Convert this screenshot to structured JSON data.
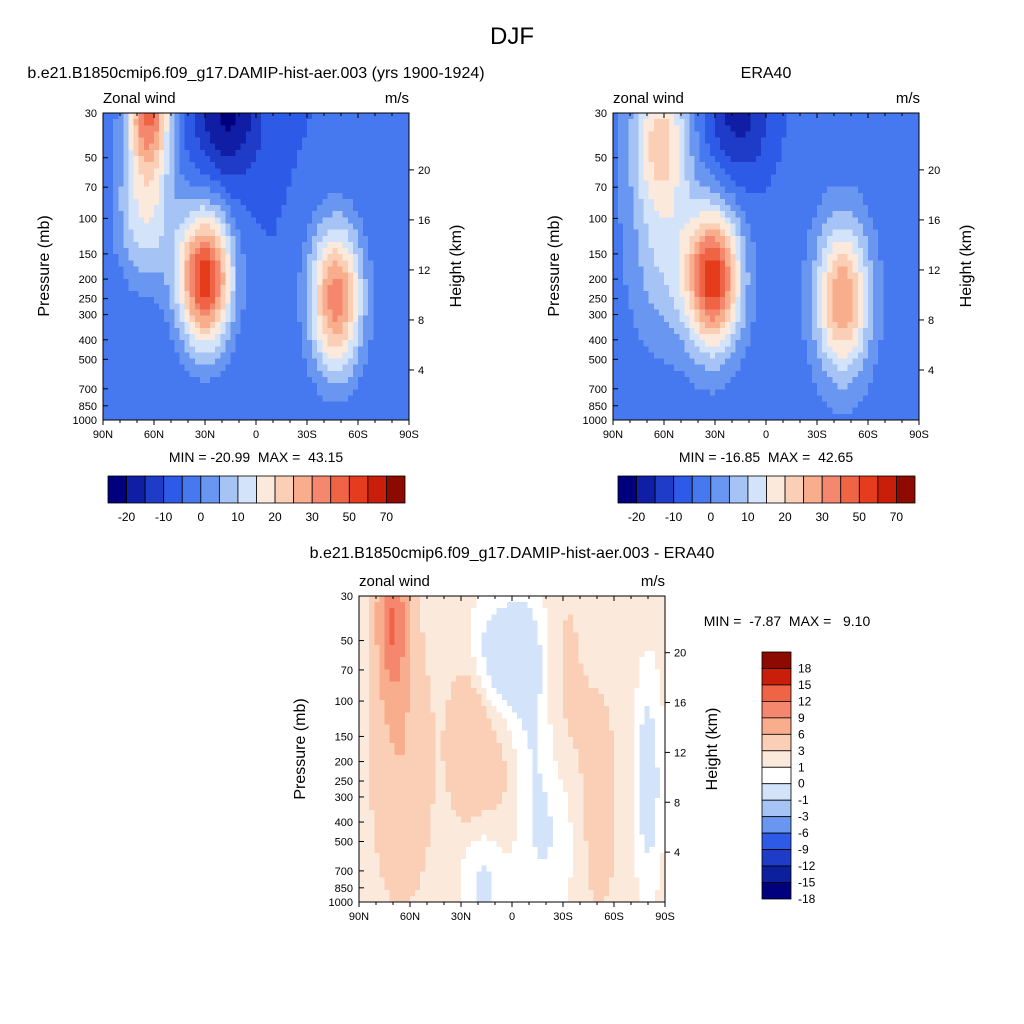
{
  "figure": {
    "title": "DJF"
  },
  "colors": {
    "abs": [
      "#00007f",
      "#0f1ea5",
      "#1e3cc8",
      "#2d5ae6",
      "#4678f0",
      "#6996f0",
      "#a5c3f5",
      "#d2e3fa",
      "#fbe9dc",
      "#fbcfb5",
      "#f8ad8c",
      "#f5876e",
      "#f06446",
      "#e63c1e",
      "#c81e0a",
      "#8c0a00"
    ],
    "diff": [
      "#00007f",
      "#0c1f9c",
      "#1e3cc8",
      "#2d5ae6",
      "#6996f0",
      "#a5c3f5",
      "#d2e3fa",
      "#ffffff",
      "#fbe9dc",
      "#fbcfb5",
      "#f8ad8c",
      "#f5876e",
      "#f06446",
      "#c81e0a",
      "#8c0a00"
    ]
  },
  "chart_data": [
    {
      "type": "heatmap",
      "title": "b.e21.B1850cmip6.f09_g17.DAMIP-hist-aer.003 (yrs 1900-1924)",
      "left_label": "Zonal wind",
      "right_label": "m/s",
      "ylabel": "Pressure (mb)",
      "y2label": "Height (km)",
      "x_ticks": [
        "90N",
        "60N",
        "30N",
        "0",
        "30S",
        "60S",
        "90S"
      ],
      "xlim": [
        90,
        -90
      ],
      "y_ticks": [
        "30",
        "50",
        "70",
        "100",
        "150",
        "200",
        "250",
        "300",
        "400",
        "500",
        "700",
        "850",
        "1000"
      ],
      "ylim": [
        1000,
        30
      ],
      "log_y": true,
      "y2_ticks": [
        "4",
        "8",
        "12",
        "16",
        "20"
      ],
      "stats": "MIN = -20.99  MAX =  43.15",
      "colorbar_labels": [
        "-20",
        "-10",
        "0",
        "10",
        "20",
        "30",
        "50",
        "70"
      ],
      "features": [
        {
          "desc": "subtropical jet NH",
          "lat": 30,
          "p": 200,
          "max": 43.15
        },
        {
          "desc": "subtropical jet SH",
          "lat": -47,
          "p": 250,
          "max": 32
        },
        {
          "desc": "polar night jet",
          "lat": 63,
          "p": 30,
          "max": 32
        },
        {
          "desc": "easterlies",
          "lat": 17,
          "p": 30,
          "min": -20.99
        }
      ]
    },
    {
      "type": "heatmap",
      "title": "ERA40",
      "left_label": "zonal wind",
      "right_label": "m/s",
      "ylabel": "Pressure (mb)",
      "y2label": "Height (km)",
      "x_ticks": [
        "90N",
        "60N",
        "30N",
        "0",
        "30S",
        "60S",
        "90S"
      ],
      "xlim": [
        90,
        -90
      ],
      "y_ticks": [
        "30",
        "50",
        "70",
        "100",
        "150",
        "200",
        "250",
        "300",
        "400",
        "500",
        "700",
        "850",
        "1000"
      ],
      "ylim": [
        1000,
        30
      ],
      "log_y": true,
      "y2_ticks": [
        "4",
        "8",
        "12",
        "16",
        "20"
      ],
      "stats": "MIN = -16.85  MAX =  42.65",
      "colorbar_labels": [
        "-20",
        "-10",
        "0",
        "10",
        "20",
        "30",
        "50",
        "70"
      ],
      "features": [
        {
          "desc": "subtropical jet NH",
          "lat": 31,
          "p": 200,
          "max": 42.65
        },
        {
          "desc": "subtropical jet SH",
          "lat": -45,
          "p": 250,
          "max": 30
        },
        {
          "desc": "easterlies",
          "lat": 16,
          "p": 30,
          "min": -16.85
        }
      ]
    },
    {
      "type": "heatmap",
      "title": "b.e21.B1850cmip6.f09_g17.DAMIP-hist-aer.003 - ERA40",
      "left_label": "zonal wind",
      "right_label": "m/s",
      "ylabel": "Pressure (mb)",
      "y2label": "Height (km)",
      "x_ticks": [
        "90N",
        "60N",
        "30N",
        "0",
        "30S",
        "60S",
        "90S"
      ],
      "xlim": [
        90,
        -90
      ],
      "y_ticks": [
        "30",
        "50",
        "70",
        "100",
        "150",
        "200",
        "250",
        "300",
        "400",
        "500",
        "700",
        "850",
        "1000"
      ],
      "ylim": [
        1000,
        30
      ],
      "log_y": true,
      "y2_ticks": [
        "4",
        "8",
        "12",
        "16",
        "20"
      ],
      "stats": "MIN =  -7.87  MAX =   9.10",
      "colorbar_labels": [
        "18",
        "15",
        "12",
        "9",
        "6",
        "3",
        "1",
        "0",
        "-1",
        "-3",
        "-6",
        "-9",
        "-12",
        "-15",
        "-18"
      ],
      "features": [
        {
          "desc": "positive anomaly",
          "lat": 70,
          "p": 40,
          "max": 9.1
        },
        {
          "desc": "negative anomaly",
          "lat": 5,
          "p": 60,
          "min": -7.87
        }
      ]
    }
  ]
}
